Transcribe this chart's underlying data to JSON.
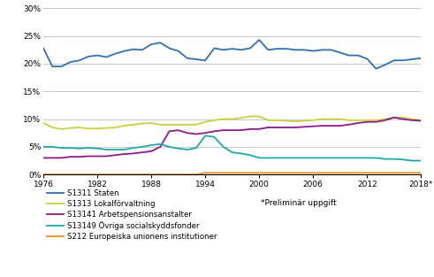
{
  "years": [
    1976,
    1977,
    1978,
    1979,
    1980,
    1981,
    1982,
    1983,
    1984,
    1985,
    1986,
    1987,
    1988,
    1989,
    1990,
    1991,
    1992,
    1993,
    1994,
    1995,
    1996,
    1997,
    1998,
    1999,
    2000,
    2001,
    2002,
    2003,
    2004,
    2005,
    2006,
    2007,
    2008,
    2009,
    2010,
    2011,
    2012,
    2013,
    2014,
    2015,
    2016,
    2017,
    2018
  ],
  "S1311": [
    22.8,
    19.5,
    19.5,
    20.3,
    20.6,
    21.3,
    21.5,
    21.2,
    21.8,
    22.3,
    22.6,
    22.5,
    23.5,
    23.8,
    22.8,
    22.3,
    21.0,
    20.8,
    20.6,
    22.8,
    22.5,
    22.7,
    22.5,
    22.8,
    24.3,
    22.5,
    22.7,
    22.7,
    22.5,
    22.5,
    22.3,
    22.5,
    22.5,
    22.0,
    21.5,
    21.5,
    20.9,
    19.1,
    19.8,
    20.6,
    20.6,
    20.8,
    21.0
  ],
  "S1313": [
    9.3,
    8.5,
    8.2,
    8.4,
    8.5,
    8.3,
    8.3,
    8.4,
    8.5,
    8.8,
    9.0,
    9.2,
    9.3,
    9.0,
    9.0,
    9.0,
    9.0,
    9.0,
    9.5,
    9.8,
    10.0,
    10.0,
    10.2,
    10.5,
    10.5,
    9.8,
    9.8,
    9.7,
    9.6,
    9.7,
    9.8,
    10.0,
    10.0,
    10.0,
    9.8,
    9.8,
    9.8,
    9.8,
    10.0,
    10.3,
    10.3,
    10.0,
    9.8
  ],
  "S13141": [
    3.0,
    3.0,
    3.0,
    3.2,
    3.2,
    3.3,
    3.3,
    3.3,
    3.5,
    3.7,
    3.8,
    4.0,
    4.2,
    5.0,
    7.8,
    8.0,
    7.5,
    7.3,
    7.5,
    7.8,
    8.0,
    8.0,
    8.0,
    8.2,
    8.2,
    8.5,
    8.5,
    8.5,
    8.5,
    8.6,
    8.7,
    8.8,
    8.8,
    8.8,
    9.0,
    9.3,
    9.5,
    9.5,
    9.8,
    10.3,
    10.0,
    9.8,
    9.7
  ],
  "S13149": [
    5.0,
    5.0,
    4.8,
    4.8,
    4.7,
    4.8,
    4.7,
    4.5,
    4.5,
    4.5,
    4.8,
    5.0,
    5.3,
    5.5,
    5.0,
    4.7,
    4.5,
    4.8,
    7.0,
    6.8,
    5.0,
    4.0,
    3.8,
    3.5,
    3.0,
    3.0,
    3.0,
    3.0,
    3.0,
    3.0,
    3.0,
    3.0,
    3.0,
    3.0,
    3.0,
    3.0,
    3.0,
    3.0,
    2.8,
    2.8,
    2.7,
    2.5,
    2.5
  ],
  "S212": [
    0.0,
    0.0,
    0.0,
    0.0,
    0.0,
    0.0,
    0.0,
    0.0,
    0.0,
    0.0,
    0.0,
    0.0,
    0.0,
    0.0,
    0.0,
    0.0,
    0.0,
    0.0,
    0.3,
    0.3,
    0.3,
    0.3,
    0.3,
    0.3,
    0.3,
    0.3,
    0.3,
    0.3,
    0.3,
    0.3,
    0.3,
    0.3,
    0.3,
    0.3,
    0.3,
    0.3,
    0.3,
    0.3,
    0.3,
    0.3,
    0.3,
    0.3,
    0.3
  ],
  "colors": {
    "S1311": "#3070B0",
    "S1313": "#C8D040",
    "S13141": "#8B1A8B",
    "S13149": "#20A8A8",
    "S212": "#E89020"
  },
  "legend_labels": {
    "S1311": "S1311 Staten",
    "S1313": "S1313 Lokalförvaltning",
    "S13141": "S13141 Arbetspensionsanstalter",
    "S13149": "S13149 Övriga socialskyddsfonder",
    "S212": "S212 Europeiska unionens institutioner"
  },
  "note": "*Preliminär uppgift",
  "yticks": [
    0,
    5,
    10,
    15,
    20,
    25,
    30
  ],
  "xticks": [
    1976,
    1982,
    1988,
    1994,
    2000,
    2006,
    2012,
    2018
  ],
  "xlim": [
    1976,
    2018
  ],
  "ylim": [
    0,
    30
  ],
  "background_color": "#ffffff",
  "grid_color": "#c8c8c8",
  "linewidth": 1.3
}
